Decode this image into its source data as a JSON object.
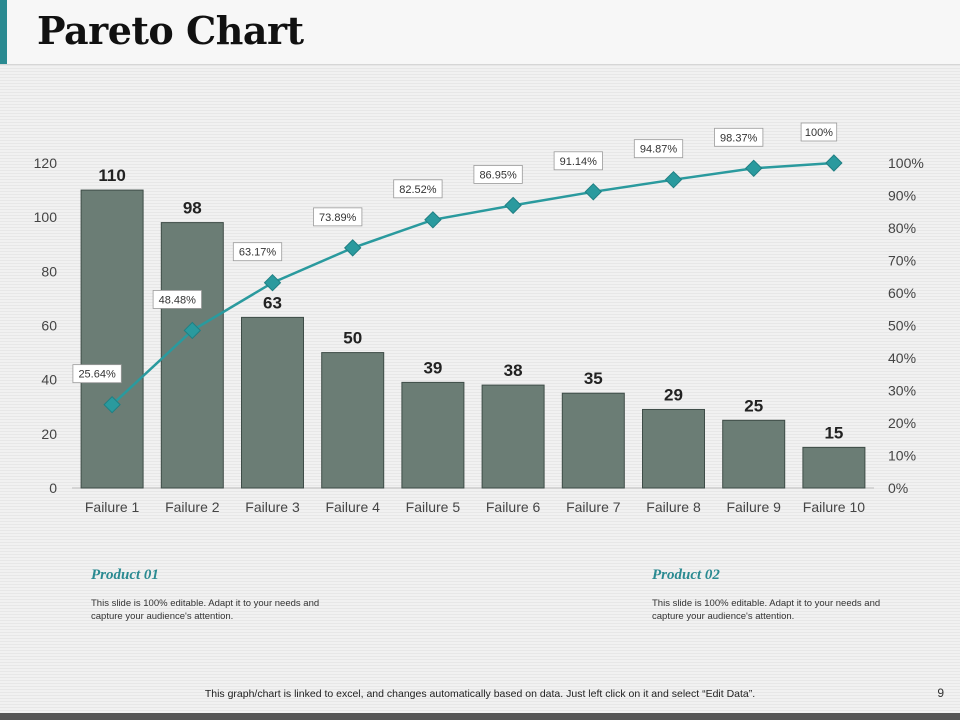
{
  "title": "Pareto Chart",
  "chart_data": {
    "type": "bar",
    "categories": [
      "Failure 1",
      "Failure 2",
      "Failure 3",
      "Failure 4",
      "Failure 5",
      "Failure 6",
      "Failure 7",
      "Failure 8",
      "Failure 9",
      "Failure 10"
    ],
    "series": [
      {
        "type": "bar",
        "values": [
          110,
          98,
          63,
          50,
          39,
          38,
          35,
          29,
          25,
          15
        ],
        "color": "#6b7d75"
      },
      {
        "type": "line",
        "axis": "right",
        "values": [
          25.64,
          48.48,
          63.17,
          73.89,
          82.52,
          86.95,
          91.14,
          94.87,
          98.37,
          100
        ],
        "labels": [
          "25.64%",
          "48.48%",
          "63.17%",
          "73.89%",
          "82.52%",
          "86.95%",
          "91.14%",
          "94.87%",
          "98.37%",
          "100%"
        ],
        "color": "#2a9a9e"
      }
    ],
    "ylim": [
      0,
      120
    ],
    "yticks": [
      "0",
      "20",
      "40",
      "60",
      "80",
      "100",
      "120"
    ],
    "y2lim": [
      0,
      100
    ],
    "y2ticks": [
      "0%",
      "10%",
      "20%",
      "30%",
      "40%",
      "50%",
      "60%",
      "70%",
      "80%",
      "90%",
      "100%"
    ],
    "grid": false,
    "legend": "none"
  },
  "products": [
    {
      "title": "Product 01",
      "text": "This slide is 100% editable. Adapt it to your needs and capture your audience's attention."
    },
    {
      "title": "Product 02",
      "text": "This slide is 100% editable. Adapt it to your needs and capture your audience's attention."
    }
  ],
  "footer": {
    "note": "This graph/chart is linked to excel, and changes automatically based on data. Just left click on it and select “Edit Data”.",
    "page": "9"
  }
}
